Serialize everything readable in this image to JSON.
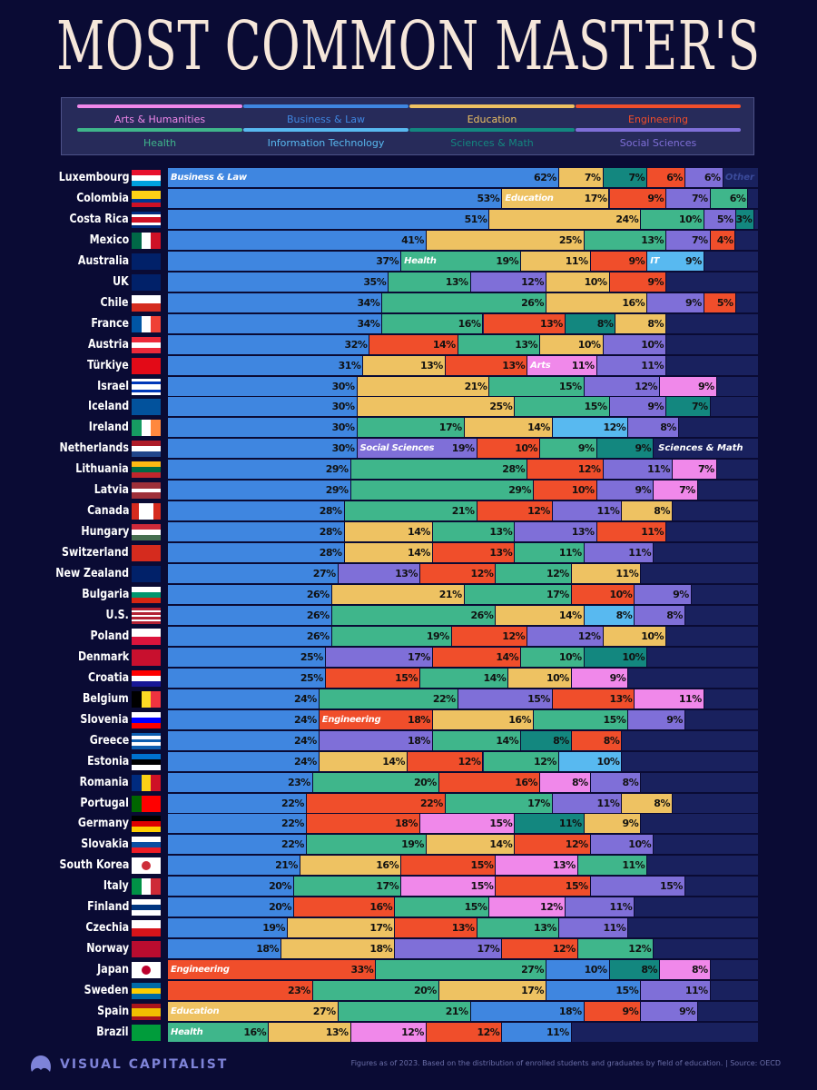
{
  "title": "MOST COMMON MASTER'S",
  "legend": [
    {
      "key": "A",
      "label": "Arts & Humanities",
      "color": "#f088ea"
    },
    {
      "key": "B",
      "label": "Business & Law",
      "color": "#3f86e0"
    },
    {
      "key": "E",
      "label": "Education",
      "color": "#eec262"
    },
    {
      "key": "N",
      "label": "Engineering",
      "color": "#f04e2b"
    },
    {
      "key": "H",
      "label": "Health",
      "color": "#3fb68b"
    },
    {
      "key": "I",
      "label": "Information Technology",
      "color": "#58b9f0"
    },
    {
      "key": "S",
      "label": "Sciences & Math",
      "color": "#13877f"
    },
    {
      "key": "O",
      "label": "Social Sciences",
      "color": "#7f6fd8"
    }
  ],
  "other_label": "Other",
  "chart_data": {
    "type": "bar",
    "orientation": "horizontal-stacked",
    "unit": "%",
    "rows": [
      {
        "country": "Luxembourg",
        "segments": [
          [
            "B",
            62,
            "Business & Law"
          ],
          [
            "E",
            7
          ],
          [
            "S",
            7
          ],
          [
            "N",
            6
          ],
          [
            "O",
            6
          ]
        ]
      },
      {
        "country": "Colombia",
        "segments": [
          [
            "B",
            53
          ],
          [
            "E",
            17,
            "Education"
          ],
          [
            "N",
            9
          ],
          [
            "O",
            7
          ],
          [
            "H",
            6
          ]
        ]
      },
      {
        "country": "Costa Rica",
        "segments": [
          [
            "B",
            51
          ],
          [
            "E",
            24
          ],
          [
            "H",
            10
          ],
          [
            "O",
            5
          ],
          [
            "S",
            3
          ]
        ]
      },
      {
        "country": "Mexico",
        "segments": [
          [
            "B",
            41
          ],
          [
            "E",
            25
          ],
          [
            "H",
            13
          ],
          [
            "O",
            7
          ],
          [
            "N",
            4
          ]
        ]
      },
      {
        "country": "Australia",
        "segments": [
          [
            "B",
            37
          ],
          [
            "H",
            19,
            "Health"
          ],
          [
            "E",
            11
          ],
          [
            "N",
            9
          ],
          [
            "I",
            9,
            "IT"
          ]
        ]
      },
      {
        "country": "UK",
        "segments": [
          [
            "B",
            35
          ],
          [
            "H",
            13
          ],
          [
            "O",
            12
          ],
          [
            "E",
            10
          ],
          [
            "N",
            9
          ]
        ]
      },
      {
        "country": "Chile",
        "segments": [
          [
            "B",
            34
          ],
          [
            "H",
            26
          ],
          [
            "E",
            16
          ],
          [
            "O",
            9
          ],
          [
            "N",
            5
          ]
        ]
      },
      {
        "country": "France",
        "segments": [
          [
            "B",
            34
          ],
          [
            "H",
            16
          ],
          [
            "N",
            13
          ],
          [
            "S",
            8
          ],
          [
            "E",
            8
          ]
        ]
      },
      {
        "country": "Austria",
        "segments": [
          [
            "B",
            32
          ],
          [
            "N",
            14
          ],
          [
            "H",
            13
          ],
          [
            "E",
            10
          ],
          [
            "O",
            10
          ]
        ]
      },
      {
        "country": "Türkiye",
        "segments": [
          [
            "B",
            31
          ],
          [
            "E",
            13
          ],
          [
            "N",
            13
          ],
          [
            "A",
            11,
            "Arts"
          ],
          [
            "O",
            11
          ]
        ]
      },
      {
        "country": "Israel",
        "segments": [
          [
            "B",
            30
          ],
          [
            "E",
            21
          ],
          [
            "H",
            15
          ],
          [
            "O",
            12
          ],
          [
            "A",
            9
          ]
        ]
      },
      {
        "country": "Iceland",
        "segments": [
          [
            "B",
            30
          ],
          [
            "E",
            25
          ],
          [
            "H",
            15
          ],
          [
            "O",
            9
          ],
          [
            "S",
            7
          ]
        ]
      },
      {
        "country": "Ireland",
        "segments": [
          [
            "B",
            30
          ],
          [
            "H",
            17
          ],
          [
            "E",
            14
          ],
          [
            "I",
            12
          ],
          [
            "O",
            8
          ]
        ]
      },
      {
        "country": "Netherlands",
        "segments": [
          [
            "B",
            30
          ],
          [
            "O",
            19,
            "Social Sciences"
          ],
          [
            "N",
            10
          ],
          [
            "H",
            9
          ],
          [
            "S",
            9
          ]
        ],
        "after": "Sciences & Math"
      },
      {
        "country": "Lithuania",
        "segments": [
          [
            "B",
            29
          ],
          [
            "H",
            28
          ],
          [
            "N",
            12
          ],
          [
            "O",
            11
          ],
          [
            "A",
            7
          ]
        ]
      },
      {
        "country": "Latvia",
        "segments": [
          [
            "B",
            29
          ],
          [
            "H",
            29
          ],
          [
            "N",
            10
          ],
          [
            "O",
            9
          ],
          [
            "A",
            7
          ]
        ]
      },
      {
        "country": "Canada",
        "segments": [
          [
            "B",
            28
          ],
          [
            "H",
            21
          ],
          [
            "N",
            12
          ],
          [
            "O",
            11
          ],
          [
            "E",
            8
          ]
        ]
      },
      {
        "country": "Hungary",
        "segments": [
          [
            "B",
            28
          ],
          [
            "E",
            14
          ],
          [
            "H",
            13
          ],
          [
            "O",
            13
          ],
          [
            "N",
            11
          ]
        ]
      },
      {
        "country": "Switzerland",
        "segments": [
          [
            "B",
            28
          ],
          [
            "E",
            14
          ],
          [
            "N",
            13
          ],
          [
            "H",
            11
          ],
          [
            "O",
            11
          ]
        ]
      },
      {
        "country": "New Zealand",
        "segments": [
          [
            "B",
            27
          ],
          [
            "O",
            13
          ],
          [
            "N",
            12
          ],
          [
            "H",
            12
          ],
          [
            "E",
            11
          ]
        ]
      },
      {
        "country": "Bulgaria",
        "segments": [
          [
            "B",
            26
          ],
          [
            "E",
            21
          ],
          [
            "H",
            17
          ],
          [
            "N",
            10
          ],
          [
            "O",
            9
          ]
        ]
      },
      {
        "country": "U.S.",
        "segments": [
          [
            "B",
            26
          ],
          [
            "H",
            26
          ],
          [
            "E",
            14
          ],
          [
            "I",
            8
          ],
          [
            "O",
            8
          ]
        ]
      },
      {
        "country": "Poland",
        "segments": [
          [
            "B",
            26
          ],
          [
            "H",
            19
          ],
          [
            "N",
            12
          ],
          [
            "O",
            12
          ],
          [
            "E",
            10
          ]
        ]
      },
      {
        "country": "Denmark",
        "segments": [
          [
            "B",
            25
          ],
          [
            "O",
            17
          ],
          [
            "N",
            14
          ],
          [
            "H",
            10
          ],
          [
            "S",
            10
          ]
        ]
      },
      {
        "country": "Croatia",
        "segments": [
          [
            "B",
            25
          ],
          [
            "N",
            15
          ],
          [
            "H",
            14
          ],
          [
            "E",
            10
          ],
          [
            "A",
            9
          ]
        ]
      },
      {
        "country": "Belgium",
        "segments": [
          [
            "B",
            24
          ],
          [
            "H",
            22
          ],
          [
            "O",
            15
          ],
          [
            "N",
            13
          ],
          [
            "A",
            11
          ]
        ]
      },
      {
        "country": "Slovenia",
        "segments": [
          [
            "B",
            24
          ],
          [
            "N",
            18,
            "Engineering"
          ],
          [
            "E",
            16
          ],
          [
            "H",
            15
          ],
          [
            "O",
            9
          ]
        ]
      },
      {
        "country": "Greece",
        "segments": [
          [
            "B",
            24
          ],
          [
            "O",
            18
          ],
          [
            "H",
            14
          ],
          [
            "S",
            8
          ],
          [
            "N",
            8
          ]
        ]
      },
      {
        "country": "Estonia",
        "segments": [
          [
            "B",
            24
          ],
          [
            "E",
            14
          ],
          [
            "N",
            12
          ],
          [
            "H",
            12
          ],
          [
            "I",
            10
          ]
        ]
      },
      {
        "country": "Romania",
        "segments": [
          [
            "B",
            23
          ],
          [
            "H",
            20
          ],
          [
            "N",
            16
          ],
          [
            "A",
            8
          ],
          [
            "O",
            8
          ]
        ]
      },
      {
        "country": "Portugal",
        "segments": [
          [
            "B",
            22
          ],
          [
            "N",
            22
          ],
          [
            "H",
            17
          ],
          [
            "O",
            11
          ],
          [
            "E",
            8
          ]
        ]
      },
      {
        "country": "Germany",
        "segments": [
          [
            "B",
            22
          ],
          [
            "N",
            18
          ],
          [
            "A",
            15
          ],
          [
            "S",
            11
          ],
          [
            "E",
            9
          ]
        ]
      },
      {
        "country": "Slovakia",
        "segments": [
          [
            "B",
            22
          ],
          [
            "H",
            19
          ],
          [
            "E",
            14
          ],
          [
            "N",
            12
          ],
          [
            "O",
            10
          ]
        ]
      },
      {
        "country": "South Korea",
        "segments": [
          [
            "B",
            21
          ],
          [
            "E",
            16
          ],
          [
            "N",
            15
          ],
          [
            "A",
            13
          ],
          [
            "H",
            11
          ]
        ]
      },
      {
        "country": "Italy",
        "segments": [
          [
            "B",
            20
          ],
          [
            "H",
            17
          ],
          [
            "A",
            15
          ],
          [
            "N",
            15
          ],
          [
            "O",
            15
          ]
        ]
      },
      {
        "country": "Finland",
        "segments": [
          [
            "B",
            20
          ],
          [
            "N",
            16
          ],
          [
            "H",
            15
          ],
          [
            "A",
            12
          ],
          [
            "O",
            11
          ]
        ]
      },
      {
        "country": "Czechia",
        "segments": [
          [
            "B",
            19
          ],
          [
            "E",
            17
          ],
          [
            "N",
            13
          ],
          [
            "H",
            13
          ],
          [
            "O",
            11
          ]
        ]
      },
      {
        "country": "Norway",
        "segments": [
          [
            "B",
            18
          ],
          [
            "E",
            18
          ],
          [
            "O",
            17
          ],
          [
            "N",
            12
          ],
          [
            "H",
            12
          ]
        ]
      },
      {
        "country": "Japan",
        "segments": [
          [
            "N",
            33,
            "Engineering"
          ],
          [
            "H",
            27
          ],
          [
            "B",
            10
          ],
          [
            "S",
            8
          ],
          [
            "A",
            8
          ]
        ]
      },
      {
        "country": "Sweden",
        "segments": [
          [
            "N",
            23
          ],
          [
            "H",
            20
          ],
          [
            "E",
            17
          ],
          [
            "B",
            15
          ],
          [
            "O",
            11
          ]
        ]
      },
      {
        "country": "Spain",
        "segments": [
          [
            "E",
            27,
            "Education"
          ],
          [
            "H",
            21
          ],
          [
            "B",
            18
          ],
          [
            "N",
            9
          ],
          [
            "O",
            9
          ]
        ]
      },
      {
        "country": "Brazil",
        "segments": [
          [
            "H",
            16,
            "Health"
          ],
          [
            "E",
            13
          ],
          [
            "A",
            12
          ],
          [
            "N",
            12
          ],
          [
            "B",
            11
          ]
        ]
      }
    ]
  },
  "footer": {
    "brand": "VISUAL CAPITALIST",
    "source": "Figures as of 2023. Based on the distribution of enrolled students and graduates by field of education. | Source: OECD"
  }
}
